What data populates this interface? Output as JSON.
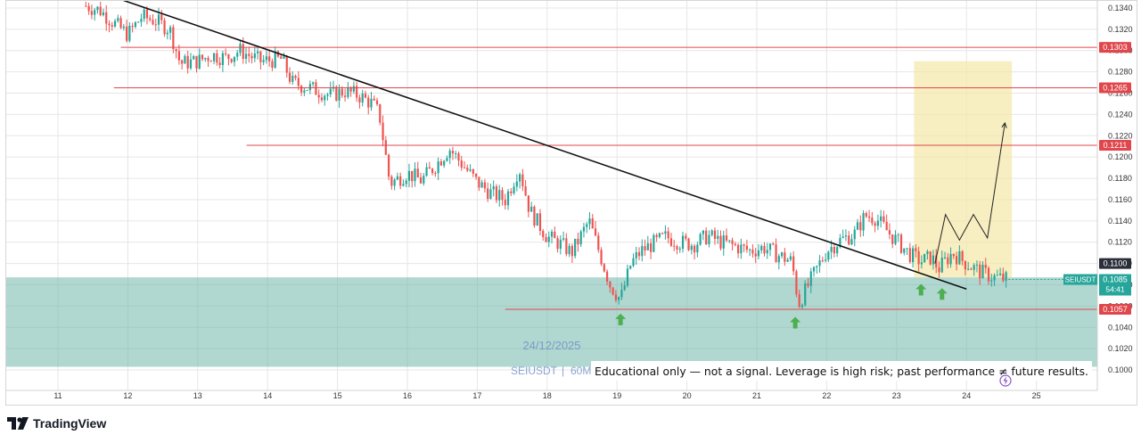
{
  "chart_data": {
    "type": "candlestick",
    "symbol": "SEIUSDT",
    "interval": "60M",
    "watermark_date": "24/12/2025",
    "disclaimer": "Educational only — not a signal. Leverage is high risk; past performance ≠ future results.",
    "ylim": [
      0.099,
      0.1345
    ],
    "yticks": [
      "0.1340",
      "0.1320",
      "0.1300",
      "0.1280",
      "0.1260",
      "0.1240",
      "0.1220",
      "0.1200",
      "0.1180",
      "0.1160",
      "0.1140",
      "0.1120",
      "0.1100",
      "0.1080",
      "0.1060",
      "0.1040",
      "0.1020",
      "0.1000"
    ],
    "xticks": [
      "11",
      "12",
      "13",
      "14",
      "15",
      "16",
      "17",
      "18",
      "19",
      "20",
      "21",
      "22",
      "23",
      "24",
      "25"
    ],
    "price_levels": [
      {
        "label": "0.1303",
        "value": 0.1303
      },
      {
        "label": "0.1265",
        "value": 0.1265
      },
      {
        "label": "0.1211",
        "value": 0.1211
      },
      {
        "label": "0.1057",
        "value": 0.1057
      }
    ],
    "marker_level": {
      "label": "0.1100",
      "value": 0.11
    },
    "current_price": {
      "symbol": "SEIUSDT",
      "label": "0.1085",
      "value": 0.1085,
      "countdown": "54:41"
    },
    "support_zone": {
      "from": 0.1003,
      "to": 0.1087
    },
    "target_zone": {
      "from_day": 23.25,
      "to_day": 24.65,
      "from": 0.1087,
      "to": 0.129
    },
    "trendline": {
      "start": {
        "day": 11.9,
        "value": 0.1348
      },
      "end": {
        "day": 24.0,
        "value": 0.1076
      }
    },
    "projection_path": [
      {
        "day": 23.55,
        "value": 0.11
      },
      {
        "day": 23.7,
        "value": 0.1146
      },
      {
        "day": 23.9,
        "value": 0.1122
      },
      {
        "day": 24.1,
        "value": 0.1146
      },
      {
        "day": 24.3,
        "value": 0.1124
      },
      {
        "day": 24.55,
        "value": 0.1232
      }
    ],
    "arrows_up": [
      {
        "day": 19.05,
        "value": 0.1047
      },
      {
        "day": 21.55,
        "value": 0.1044
      },
      {
        "day": 23.35,
        "value": 0.1075
      },
      {
        "day": 23.65,
        "value": 0.1071
      }
    ],
    "price_path": [
      [
        11.4,
        0.1342
      ],
      [
        11.6,
        0.1338
      ],
      [
        11.8,
        0.1326
      ],
      [
        12.0,
        0.1315
      ],
      [
        12.2,
        0.1332
      ],
      [
        12.4,
        0.1328
      ],
      [
        12.6,
        0.132
      ],
      [
        12.75,
        0.1288
      ],
      [
        13.0,
        0.129
      ],
      [
        13.2,
        0.1296
      ],
      [
        13.4,
        0.1293
      ],
      [
        13.6,
        0.13
      ],
      [
        13.9,
        0.129
      ],
      [
        14.2,
        0.1292
      ],
      [
        14.35,
        0.127
      ],
      [
        14.6,
        0.1265
      ],
      [
        14.9,
        0.1258
      ],
      [
        15.1,
        0.1262
      ],
      [
        15.3,
        0.1258
      ],
      [
        15.5,
        0.125
      ],
      [
        15.6,
        0.124
      ],
      [
        15.75,
        0.1175
      ],
      [
        16.0,
        0.1185
      ],
      [
        16.2,
        0.1178
      ],
      [
        16.4,
        0.1192
      ],
      [
        16.6,
        0.1208
      ],
      [
        16.8,
        0.1192
      ],
      [
        17.0,
        0.1176
      ],
      [
        17.2,
        0.1166
      ],
      [
        17.4,
        0.116
      ],
      [
        17.6,
        0.119
      ],
      [
        17.75,
        0.115
      ],
      [
        17.9,
        0.1135
      ],
      [
        18.0,
        0.1125
      ],
      [
        18.2,
        0.1118
      ],
      [
        18.35,
        0.111
      ],
      [
        18.5,
        0.1128
      ],
      [
        18.6,
        0.114
      ],
      [
        18.75,
        0.111
      ],
      [
        18.9,
        0.108
      ],
      [
        19.05,
        0.1066
      ],
      [
        19.2,
        0.11
      ],
      [
        19.35,
        0.1112
      ],
      [
        19.5,
        0.1118
      ],
      [
        19.7,
        0.1125
      ],
      [
        19.9,
        0.112
      ],
      [
        20.1,
        0.1118
      ],
      [
        20.3,
        0.1126
      ],
      [
        20.5,
        0.112
      ],
      [
        20.7,
        0.1116
      ],
      [
        20.9,
        0.1112
      ],
      [
        21.1,
        0.1115
      ],
      [
        21.3,
        0.1108
      ],
      [
        21.5,
        0.1102
      ],
      [
        21.6,
        0.1062
      ],
      [
        21.8,
        0.1088
      ],
      [
        22.0,
        0.1112
      ],
      [
        22.2,
        0.1122
      ],
      [
        22.4,
        0.1128
      ],
      [
        22.55,
        0.1145
      ],
      [
        22.7,
        0.1143
      ],
      [
        22.9,
        0.1128
      ],
      [
        23.05,
        0.1118
      ],
      [
        23.2,
        0.1108
      ],
      [
        23.35,
        0.1102
      ],
      [
        23.5,
        0.1106
      ],
      [
        23.6,
        0.1095
      ],
      [
        23.8,
        0.111
      ],
      [
        24.0,
        0.11
      ],
      [
        24.2,
        0.1092
      ],
      [
        24.4,
        0.1087
      ],
      [
        24.6,
        0.1085
      ]
    ]
  },
  "branding": {
    "logo_icon": "tradingview-logo-icon",
    "name": "TradingView"
  }
}
